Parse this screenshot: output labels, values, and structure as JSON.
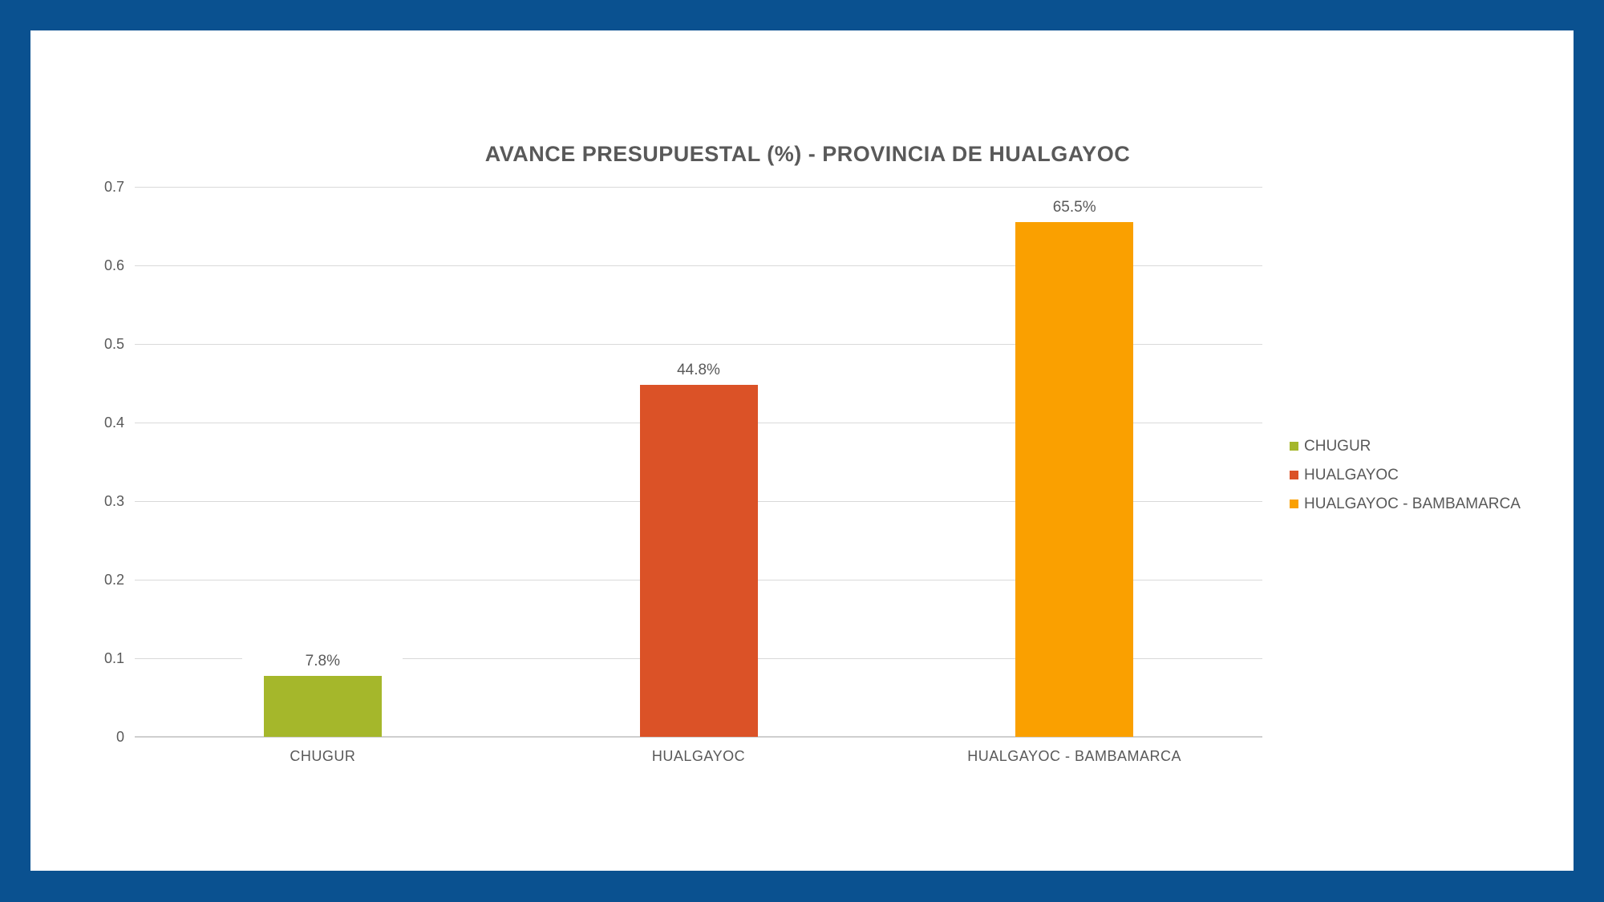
{
  "frame": {
    "border_color": "#0A5190",
    "background_color": "#FFFFFF"
  },
  "chart_data": {
    "type": "bar",
    "title": "AVANCE PRESUPUESTAL (%) - PROVINCIA DE HUALGAYOC",
    "categories": [
      "CHUGUR",
      "HUALGAYOC",
      "HUALGAYOC - BAMBAMARCA"
    ],
    "values": [
      0.078,
      0.448,
      0.655
    ],
    "data_labels": [
      "7.8%",
      "44.8%",
      "65.5%"
    ],
    "series_colors": [
      "#A5B72B",
      "#DB5227",
      "#FAA000"
    ],
    "xlabel": "",
    "ylabel": "",
    "ylim": [
      0,
      0.7
    ],
    "ytick_values": [
      0,
      0.1,
      0.2,
      0.3,
      0.4,
      0.5,
      0.6,
      0.7
    ],
    "ytick_labels": [
      "0",
      "0.1",
      "0.2",
      "0.3",
      "0.4",
      "0.5",
      "0.6",
      "0.7"
    ],
    "grid": "horizontal",
    "gridline_color": "#D9D9D9",
    "axis_line_color": "#CFCFCF",
    "text_color": "#595959",
    "legend": {
      "position": "right",
      "entries": [
        {
          "label": "CHUGUR",
          "color": "#A5B72B"
        },
        {
          "label": "HUALGAYOC",
          "color": "#DB5227"
        },
        {
          "label": "HUALGAYOC - BAMBAMARCA",
          "color": "#FAA000"
        }
      ]
    }
  }
}
